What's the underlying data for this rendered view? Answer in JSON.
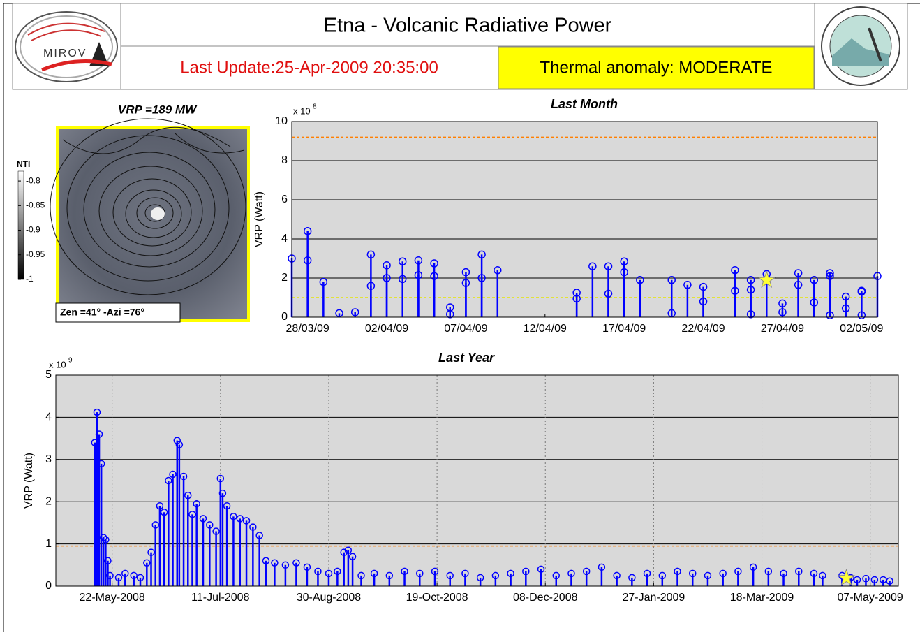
{
  "header": {
    "title": "Etna - Volcanic Radiative Power",
    "last_update": "Last Update:25-Apr-2009 20:35:00",
    "thermal_anomaly": "Thermal anomaly:  MODERATE",
    "logo_text": "MIROV"
  },
  "image_panel": {
    "title": "VRP =189 MW",
    "colorbar_label": "NTI",
    "colorbar_lim": [
      -1,
      -0.78
    ],
    "colorbar_ticks": [
      -0.8,
      -0.85,
      -0.9,
      -0.95,
      -1
    ],
    "caption": "Zen =41° -Azi =76°"
  },
  "chart_data": [
    {
      "type": "stem",
      "title": "Last Month",
      "y_label": "VRP (Watt)",
      "y_multiplier": "x 10",
      "y_exponent": "8",
      "color": "#0000ff",
      "x": [
        "2009-03-27",
        "2009-03-28",
        "2009-03-28",
        "2009-03-29",
        "2009-03-30",
        "2009-03-31",
        "2009-04-01",
        "2009-04-01",
        "2009-04-02",
        "2009-04-02",
        "2009-04-03",
        "2009-04-03",
        "2009-04-04",
        "2009-04-04",
        "2009-04-05",
        "2009-04-05",
        "2009-04-06",
        "2009-04-06",
        "2009-04-07",
        "2009-04-07",
        "2009-04-08",
        "2009-04-08",
        "2009-04-09",
        "2009-04-14",
        "2009-04-14",
        "2009-04-15",
        "2009-04-16",
        "2009-04-16",
        "2009-04-17",
        "2009-04-17",
        "2009-04-18",
        "2009-04-20",
        "2009-04-20",
        "2009-04-21",
        "2009-04-22",
        "2009-04-22",
        "2009-04-24",
        "2009-04-24",
        "2009-04-25",
        "2009-04-25",
        "2009-04-25",
        "2009-04-26",
        "2009-04-27",
        "2009-04-27",
        "2009-04-28",
        "2009-04-28",
        "2009-04-29",
        "2009-04-29",
        "2009-04-30",
        "2009-04-30",
        "2009-04-30",
        "2009-05-01",
        "2009-05-01",
        "2009-05-02",
        "2009-05-02",
        "2009-05-02",
        "2009-05-03"
      ],
      "values": [
        3.0,
        4.4,
        2.9,
        1.8,
        0.2,
        0.25,
        3.2,
        1.6,
        2.65,
        2.0,
        2.85,
        1.95,
        2.9,
        2.15,
        2.75,
        2.1,
        0.5,
        0.15,
        2.3,
        1.75,
        3.2,
        2.0,
        2.4,
        1.25,
        0.95,
        2.6,
        2.6,
        1.2,
        2.85,
        2.3,
        1.9,
        1.9,
        0.2,
        1.65,
        1.55,
        0.8,
        2.4,
        1.35,
        1.9,
        1.4,
        0.15,
        2.2,
        0.7,
        0.25,
        2.25,
        1.65,
        1.9,
        0.75,
        2.25,
        2.1,
        0.1,
        1.05,
        0.45,
        1.35,
        1.3,
        0.1,
        2.1
      ],
      "highlight": {
        "x": "2009-04-26",
        "value": 1.89,
        "color": "#ffff33"
      },
      "reference_lines": [
        {
          "value": 9.2,
          "color": "#ff7f00"
        },
        {
          "value": 1.0,
          "color": "#e6e600"
        }
      ],
      "xlim": [
        "2009-03-27",
        "2009-05-03"
      ],
      "xticks": [
        {
          "value": "2009-03-28",
          "label": "28/03/09"
        },
        {
          "value": "2009-04-02",
          "label": "02/04/09"
        },
        {
          "value": "2009-04-07",
          "label": "07/04/09"
        },
        {
          "value": "2009-04-12",
          "label": "12/04/09"
        },
        {
          "value": "2009-04-17",
          "label": "17/04/09"
        },
        {
          "value": "2009-04-22",
          "label": "22/04/09"
        },
        {
          "value": "2009-04-27",
          "label": "27/04/09"
        },
        {
          "value": "2009-05-02",
          "label": "02/05/09"
        }
      ],
      "ylim": [
        0,
        10
      ],
      "yticks": [
        0,
        2,
        4,
        6,
        8,
        10
      ],
      "grid": true,
      "vertical_grid": false
    },
    {
      "type": "stem",
      "title": "Last Year",
      "y_label": "VRP (Watt)",
      "y_multiplier": "x 10",
      "y_exponent": "9",
      "color": "#0000ff",
      "x": [
        "2008-05-14",
        "2008-05-15",
        "2008-05-16",
        "2008-05-17",
        "2008-05-18",
        "2008-05-19",
        "2008-05-20",
        "2008-05-21",
        "2008-05-25",
        "2008-05-28",
        "2008-06-01",
        "2008-06-04",
        "2008-06-07",
        "2008-06-09",
        "2008-06-11",
        "2008-06-13",
        "2008-06-15",
        "2008-06-17",
        "2008-06-19",
        "2008-06-21",
        "2008-06-22",
        "2008-06-24",
        "2008-06-26",
        "2008-06-28",
        "2008-06-30",
        "2008-07-03",
        "2008-07-06",
        "2008-07-09",
        "2008-07-11",
        "2008-07-12",
        "2008-07-14",
        "2008-07-17",
        "2008-07-20",
        "2008-07-23",
        "2008-07-26",
        "2008-07-29",
        "2008-08-01",
        "2008-08-05",
        "2008-08-10",
        "2008-08-15",
        "2008-08-20",
        "2008-08-25",
        "2008-08-30",
        "2008-09-03",
        "2008-09-06",
        "2008-09-08",
        "2008-09-10",
        "2008-09-14",
        "2008-09-20",
        "2008-09-27",
        "2008-10-04",
        "2008-10-11",
        "2008-10-18",
        "2008-10-25",
        "2008-11-01",
        "2008-11-08",
        "2008-11-15",
        "2008-11-22",
        "2008-11-29",
        "2008-12-06",
        "2008-12-13",
        "2008-12-20",
        "2008-12-27",
        "2009-01-03",
        "2009-01-10",
        "2009-01-17",
        "2009-01-24",
        "2009-01-31",
        "2009-02-07",
        "2009-02-14",
        "2009-02-21",
        "2009-02-28",
        "2009-03-07",
        "2009-03-14",
        "2009-03-21",
        "2009-03-28",
        "2009-04-04",
        "2009-04-11",
        "2009-04-15",
        "2009-04-24",
        "2009-04-28",
        "2009-05-01",
        "2009-05-05",
        "2009-05-09",
        "2009-05-13",
        "2009-05-16"
      ],
      "values": [
        3.4,
        4.12,
        3.6,
        2.9,
        1.15,
        1.1,
        0.6,
        0.25,
        0.2,
        0.3,
        0.25,
        0.2,
        0.55,
        0.8,
        1.45,
        1.9,
        1.75,
        2.5,
        2.65,
        3.45,
        3.35,
        2.6,
        2.15,
        1.7,
        1.95,
        1.6,
        1.45,
        1.3,
        2.55,
        2.2,
        1.9,
        1.65,
        1.6,
        1.55,
        1.4,
        1.2,
        0.6,
        0.55,
        0.5,
        0.55,
        0.45,
        0.35,
        0.3,
        0.35,
        0.8,
        0.85,
        0.7,
        0.25,
        0.3,
        0.25,
        0.35,
        0.3,
        0.35,
        0.25,
        0.3,
        0.2,
        0.25,
        0.3,
        0.35,
        0.4,
        0.25,
        0.3,
        0.35,
        0.45,
        0.25,
        0.2,
        0.3,
        0.25,
        0.35,
        0.3,
        0.25,
        0.3,
        0.35,
        0.45,
        0.35,
        0.3,
        0.35,
        0.3,
        0.25,
        0.25,
        0.2,
        0.15,
        0.18,
        0.15,
        0.15,
        0.12
      ],
      "highlight": {
        "x": "2009-04-26",
        "value": 0.189,
        "color": "#ffff33"
      },
      "reference_lines": [
        {
          "value": 0.95,
          "color": "#ff7f00"
        }
      ],
      "xlim": [
        "2008-04-26",
        "2009-05-20"
      ],
      "xticks": [
        {
          "value": "2008-05-22",
          "label": "22-May-2008"
        },
        {
          "value": "2008-07-11",
          "label": "11-Jul-2008"
        },
        {
          "value": "2008-08-30",
          "label": "30-Aug-2008"
        },
        {
          "value": "2008-10-19",
          "label": "19-Oct-2008"
        },
        {
          "value": "2008-12-08",
          "label": "08-Dec-2008"
        },
        {
          "value": "2009-01-27",
          "label": "27-Jan-2009"
        },
        {
          "value": "2009-03-18",
          "label": "18-Mar-2009"
        },
        {
          "value": "2009-05-07",
          "label": "07-May-2009"
        }
      ],
      "ylim": [
        0,
        5
      ],
      "yticks": [
        0,
        1,
        2,
        3,
        4,
        5
      ],
      "grid": true,
      "vertical_grid": true
    }
  ]
}
